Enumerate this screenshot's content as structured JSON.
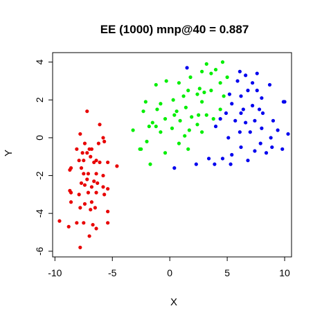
{
  "chart_data": {
    "type": "scatter",
    "title": "EE (1000) mnp@40 = 0.887",
    "xlabel": "X",
    "ylabel": "Y",
    "xlim": [
      -10.2,
      10.6
    ],
    "ylim": [
      -6.3,
      4.5
    ],
    "xticks": [
      -10,
      -5,
      0,
      5,
      10
    ],
    "yticks": [
      -6,
      -4,
      -2,
      0,
      2,
      4
    ],
    "grid": false,
    "legend": "none",
    "series": [
      {
        "color": "#e80000",
        "points": [
          [
            -7.2,
            1.4
          ],
          [
            -6.1,
            0.7
          ],
          [
            -7.8,
            0.2
          ],
          [
            -5.8,
            0.0
          ],
          [
            -5.7,
            -0.2
          ],
          [
            -6.2,
            -0.3
          ],
          [
            -7.4,
            -0.3
          ],
          [
            -8.1,
            -0.6
          ],
          [
            -7.0,
            -0.6
          ],
          [
            -6.8,
            -0.6
          ],
          [
            -7.6,
            -0.8
          ],
          [
            -7.2,
            -0.8
          ],
          [
            -7.5,
            -1.2
          ],
          [
            -6.9,
            -1.0
          ],
          [
            -6.4,
            -1.2
          ],
          [
            -6.1,
            -1.3
          ],
          [
            -6.6,
            -1.3
          ],
          [
            -5.4,
            -1.3
          ],
          [
            -7.9,
            -1.2
          ],
          [
            -4.6,
            -1.5
          ],
          [
            -8.6,
            -1.6
          ],
          [
            -8.7,
            -1.7
          ],
          [
            -7.7,
            -1.6
          ],
          [
            -7.5,
            -1.9
          ],
          [
            -7.1,
            -1.9
          ],
          [
            -6.4,
            -1.9
          ],
          [
            -5.8,
            -2.0
          ],
          [
            -7.2,
            -2.2
          ],
          [
            -6.6,
            -2.3
          ],
          [
            -6.3,
            -2.4
          ],
          [
            -7.7,
            -2.4
          ],
          [
            -7.4,
            -2.5
          ],
          [
            -6.8,
            -2.6
          ],
          [
            -5.8,
            -2.6
          ],
          [
            -5.4,
            -2.7
          ],
          [
            -8.7,
            -2.8
          ],
          [
            -8.6,
            -2.9
          ],
          [
            -7.1,
            -2.9
          ],
          [
            -6.4,
            -2.9
          ],
          [
            -7.9,
            -3.0
          ],
          [
            -5.7,
            -3.0
          ],
          [
            -8.6,
            -3.4
          ],
          [
            -6.8,
            -3.4
          ],
          [
            -7.4,
            -3.5
          ],
          [
            -6.5,
            -3.7
          ],
          [
            -7.8,
            -3.7
          ],
          [
            -6.9,
            -3.8
          ],
          [
            -5.4,
            -3.9
          ],
          [
            -9.6,
            -4.4
          ],
          [
            -8.1,
            -4.5
          ],
          [
            -7.5,
            -4.5
          ],
          [
            -5.4,
            -4.5
          ],
          [
            -6.7,
            -4.6
          ],
          [
            -8.8,
            -4.7
          ],
          [
            -6.4,
            -4.8
          ],
          [
            -7.0,
            -5.2
          ],
          [
            -7.8,
            -5.8
          ]
        ]
      },
      {
        "color": "#00ee00",
        "points": [
          [
            4.6,
            4.0
          ],
          [
            3.2,
            3.9
          ],
          [
            4.0,
            3.6
          ],
          [
            2.8,
            3.5
          ],
          [
            5.0,
            3.2
          ],
          [
            1.8,
            3.2
          ],
          [
            3.6,
            3.4
          ],
          [
            -0.3,
            3.0
          ],
          [
            0.8,
            2.9
          ],
          [
            4.4,
            2.9
          ],
          [
            -1.2,
            2.8
          ],
          [
            2.6,
            2.6
          ],
          [
            1.6,
            2.5
          ],
          [
            3.6,
            2.5
          ],
          [
            3.0,
            2.4
          ],
          [
            2.4,
            2.3
          ],
          [
            1.2,
            2.2
          ],
          [
            4.7,
            2.2
          ],
          [
            0.3,
            2.0
          ],
          [
            -2.1,
            1.9
          ],
          [
            -0.8,
            1.8
          ],
          [
            2.8,
            1.9
          ],
          [
            1.4,
            1.6
          ],
          [
            -1.1,
            1.5
          ],
          [
            0.6,
            1.4
          ],
          [
            -2.3,
            1.4
          ],
          [
            4.4,
            1.5
          ],
          [
            2.5,
            1.2
          ],
          [
            3.2,
            1.2
          ],
          [
            0.4,
            1.2
          ],
          [
            1.9,
            1.1
          ],
          [
            -0.4,
            1.0
          ],
          [
            3.8,
            1.0
          ],
          [
            -1.5,
            0.8
          ],
          [
            0.9,
            0.9
          ],
          [
            -1.2,
            0.6
          ],
          [
            2.4,
            0.7
          ],
          [
            -1.8,
            0.6
          ],
          [
            0.2,
            0.5
          ],
          [
            1.7,
            0.4
          ],
          [
            -3.2,
            0.4
          ],
          [
            2.8,
            0.3
          ],
          [
            -0.8,
            0.3
          ],
          [
            1.3,
            0.1
          ],
          [
            -2.0,
            -0.2
          ],
          [
            0.8,
            -0.3
          ],
          [
            1.6,
            -0.6
          ],
          [
            -2.6,
            -0.6
          ],
          [
            -2.5,
            -0.6
          ],
          [
            -0.4,
            -0.8
          ],
          [
            -1.7,
            -1.4
          ]
        ]
      },
      {
        "color": "#0000ee",
        "points": [
          [
            1.5,
            3.7
          ],
          [
            6.1,
            3.5
          ],
          [
            6.6,
            3.3
          ],
          [
            7.6,
            3.4
          ],
          [
            5.9,
            3.0
          ],
          [
            7.2,
            2.9
          ],
          [
            8.7,
            2.8
          ],
          [
            6.8,
            2.5
          ],
          [
            5.2,
            2.3
          ],
          [
            6.2,
            2.2
          ],
          [
            7.6,
            2.5
          ],
          [
            8.0,
            2.1
          ],
          [
            10.0,
            1.9
          ],
          [
            9.9,
            1.9
          ],
          [
            5.4,
            1.8
          ],
          [
            7.2,
            1.7
          ],
          [
            6.4,
            1.5
          ],
          [
            7.8,
            1.5
          ],
          [
            4.9,
            1.3
          ],
          [
            6.2,
            1.3
          ],
          [
            8.1,
            1.3
          ],
          [
            4.4,
            1.0
          ],
          [
            5.7,
            0.9
          ],
          [
            7.4,
            0.9
          ],
          [
            6.6,
            0.8
          ],
          [
            9.0,
            0.9
          ],
          [
            4.0,
            0.6
          ],
          [
            8.0,
            0.5
          ],
          [
            9.4,
            0.4
          ],
          [
            10.3,
            0.2
          ],
          [
            6.1,
            0.3
          ],
          [
            7.0,
            0.3
          ],
          [
            5.1,
            0.0
          ],
          [
            8.8,
            0.0
          ],
          [
            7.9,
            -0.3
          ],
          [
            6.2,
            -0.5
          ],
          [
            8.9,
            -0.5
          ],
          [
            9.8,
            -0.6
          ],
          [
            7.4,
            -0.7
          ],
          [
            5.4,
            -0.9
          ],
          [
            8.4,
            -0.8
          ],
          [
            3.4,
            -1.1
          ],
          [
            4.6,
            -1.1
          ],
          [
            6.8,
            -1.2
          ],
          [
            5.3,
            -1.4
          ],
          [
            2.3,
            -1.4
          ],
          [
            3.9,
            -1.4
          ],
          [
            0.4,
            -1.6
          ]
        ]
      }
    ]
  }
}
